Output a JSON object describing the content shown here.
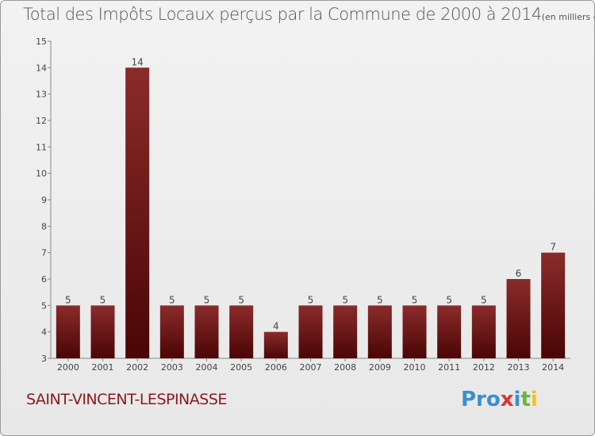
{
  "chart_data": {
    "type": "bar",
    "title": "Total des Impôts Locaux perçus par la Commune de 2000 à 2014",
    "unit": "(en milliers d'€)",
    "categories": [
      "2000",
      "2001",
      "2002",
      "2003",
      "2004",
      "2005",
      "2006",
      "2007",
      "2008",
      "2009",
      "2010",
      "2011",
      "2012",
      "2013",
      "2014"
    ],
    "values": [
      5,
      5,
      14,
      5,
      5,
      5,
      4,
      5,
      5,
      5,
      5,
      5,
      5,
      6,
      7
    ],
    "ylim": [
      3,
      15
    ],
    "yticks": [
      3,
      4,
      5,
      6,
      7,
      8,
      9,
      10,
      11,
      12,
      13,
      14,
      15
    ],
    "grid": false,
    "bar_color_top": "#8b2b2b",
    "bar_color_bottom": "#4a0505"
  },
  "commune": "SAINT-VINCENT-LESPINASSE",
  "logo": {
    "p1": "Pro",
    "p2": "x",
    "p3": "i",
    "p4": "t",
    "p5": "i"
  },
  "colors": {
    "commune_text": "#8b1a1a",
    "title_text": "#555555"
  }
}
